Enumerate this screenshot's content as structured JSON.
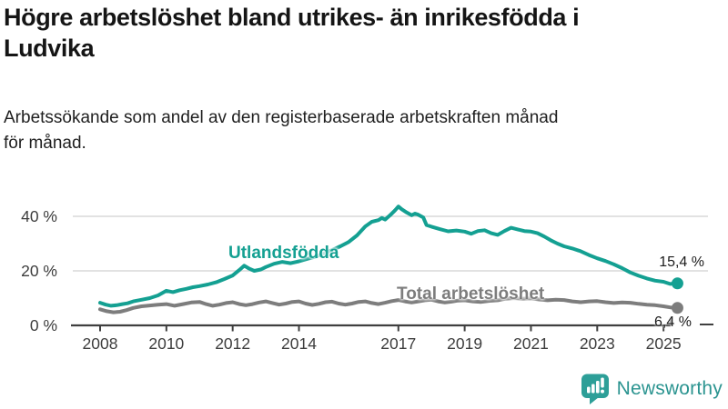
{
  "header": {
    "title": "Högre arbetslöshet bland utrikes- än inrikesfödda i Ludvika",
    "title_lines": [
      "Högre arbetslöshet bland utrikes- än inrikesfödda i",
      "Ludvika"
    ],
    "subtitle": "Arbetssökande som andel av den registerbaserade arbetskraften månad för månad.",
    "subtitle_lines": [
      "Arbetssökande som andel av den registerbaserade arbetskraften månad",
      "för månad."
    ]
  },
  "chart_data": {
    "type": "line",
    "unit": "%",
    "xlabel": "",
    "ylabel": "",
    "x_range": [
      2008,
      2025.5
    ],
    "ylim": [
      0,
      47
    ],
    "grid": "horizontal",
    "x_ticks": [
      2008,
      2010,
      2012,
      2014,
      2017,
      2019,
      2021,
      2023,
      2025
    ],
    "y_ticks": [
      {
        "value": 0,
        "label": "0 %"
      },
      {
        "value": 20,
        "label": "20 %"
      },
      {
        "value": 40,
        "label": "40 %"
      }
    ],
    "series": [
      {
        "name": "Utlandsfödda",
        "color": "#14a092",
        "end_label": "15,4 %",
        "end_value": 15.4,
        "points": [
          [
            2008.0,
            8.3
          ],
          [
            2008.17,
            7.6
          ],
          [
            2008.33,
            7.2
          ],
          [
            2008.5,
            7.4
          ],
          [
            2008.67,
            7.8
          ],
          [
            2008.83,
            8.1
          ],
          [
            2009.0,
            8.8
          ],
          [
            2009.25,
            9.4
          ],
          [
            2009.5,
            10.0
          ],
          [
            2009.75,
            11.0
          ],
          [
            2010.0,
            12.7
          ],
          [
            2010.2,
            12.2
          ],
          [
            2010.4,
            12.9
          ],
          [
            2010.6,
            13.4
          ],
          [
            2010.8,
            14.0
          ],
          [
            2011.0,
            14.4
          ],
          [
            2011.25,
            15.0
          ],
          [
            2011.5,
            15.8
          ],
          [
            2011.75,
            17.0
          ],
          [
            2012.0,
            18.3
          ],
          [
            2012.2,
            20.3
          ],
          [
            2012.35,
            21.9
          ],
          [
            2012.5,
            20.8
          ],
          [
            2012.65,
            20.0
          ],
          [
            2012.85,
            20.5
          ],
          [
            2013.0,
            21.4
          ],
          [
            2013.25,
            22.6
          ],
          [
            2013.5,
            23.3
          ],
          [
            2013.75,
            22.8
          ],
          [
            2014.0,
            23.5
          ],
          [
            2014.25,
            24.4
          ],
          [
            2014.5,
            25.2
          ],
          [
            2014.75,
            26.4
          ],
          [
            2015.0,
            27.6
          ],
          [
            2015.25,
            29.0
          ],
          [
            2015.5,
            30.6
          ],
          [
            2015.75,
            33.0
          ],
          [
            2016.0,
            36.3
          ],
          [
            2016.2,
            38.0
          ],
          [
            2016.4,
            38.6
          ],
          [
            2016.5,
            39.4
          ],
          [
            2016.6,
            38.8
          ],
          [
            2016.75,
            40.4
          ],
          [
            2016.9,
            42.2
          ],
          [
            2017.0,
            43.6
          ],
          [
            2017.1,
            42.6
          ],
          [
            2017.25,
            41.4
          ],
          [
            2017.4,
            40.4
          ],
          [
            2017.5,
            41.0
          ],
          [
            2017.6,
            40.6
          ],
          [
            2017.75,
            39.6
          ],
          [
            2017.85,
            36.8
          ],
          [
            2018.0,
            36.2
          ],
          [
            2018.25,
            35.3
          ],
          [
            2018.5,
            34.5
          ],
          [
            2018.75,
            34.8
          ],
          [
            2019.0,
            34.4
          ],
          [
            2019.2,
            33.6
          ],
          [
            2019.4,
            34.6
          ],
          [
            2019.6,
            34.9
          ],
          [
            2019.8,
            33.8
          ],
          [
            2020.0,
            33.2
          ],
          [
            2020.2,
            34.6
          ],
          [
            2020.4,
            35.8
          ],
          [
            2020.6,
            35.2
          ],
          [
            2020.8,
            34.6
          ],
          [
            2021.0,
            34.4
          ],
          [
            2021.2,
            33.8
          ],
          [
            2021.4,
            32.6
          ],
          [
            2021.6,
            31.2
          ],
          [
            2021.8,
            30.0
          ],
          [
            2022.0,
            29.0
          ],
          [
            2022.25,
            28.2
          ],
          [
            2022.5,
            27.2
          ],
          [
            2022.75,
            25.8
          ],
          [
            2023.0,
            24.6
          ],
          [
            2023.25,
            23.6
          ],
          [
            2023.5,
            22.4
          ],
          [
            2023.75,
            21.0
          ],
          [
            2024.0,
            19.4
          ],
          [
            2024.25,
            18.2
          ],
          [
            2024.5,
            17.2
          ],
          [
            2024.75,
            16.4
          ],
          [
            2025.0,
            16.0
          ],
          [
            2025.2,
            15.2
          ],
          [
            2025.42,
            15.4
          ]
        ]
      },
      {
        "name": "Total arbetslöshet",
        "color": "#7d7d7d",
        "end_label": "6,4 %",
        "end_value": 6.4,
        "points": [
          [
            2008.0,
            5.9
          ],
          [
            2008.2,
            5.2
          ],
          [
            2008.4,
            4.8
          ],
          [
            2008.6,
            5.0
          ],
          [
            2008.8,
            5.6
          ],
          [
            2009.0,
            6.4
          ],
          [
            2009.25,
            7.0
          ],
          [
            2009.5,
            7.3
          ],
          [
            2009.75,
            7.6
          ],
          [
            2010.0,
            7.8
          ],
          [
            2010.25,
            7.2
          ],
          [
            2010.5,
            7.8
          ],
          [
            2010.75,
            8.4
          ],
          [
            2011.0,
            8.6
          ],
          [
            2011.2,
            7.8
          ],
          [
            2011.4,
            7.2
          ],
          [
            2011.6,
            7.6
          ],
          [
            2011.8,
            8.2
          ],
          [
            2012.0,
            8.5
          ],
          [
            2012.2,
            7.8
          ],
          [
            2012.4,
            7.4
          ],
          [
            2012.6,
            7.8
          ],
          [
            2012.8,
            8.4
          ],
          [
            2013.0,
            8.8
          ],
          [
            2013.2,
            8.2
          ],
          [
            2013.4,
            7.6
          ],
          [
            2013.6,
            8.0
          ],
          [
            2013.8,
            8.6
          ],
          [
            2014.0,
            8.8
          ],
          [
            2014.2,
            8.0
          ],
          [
            2014.4,
            7.5
          ],
          [
            2014.6,
            7.9
          ],
          [
            2014.8,
            8.5
          ],
          [
            2015.0,
            8.7
          ],
          [
            2015.2,
            8.0
          ],
          [
            2015.4,
            7.6
          ],
          [
            2015.6,
            8.0
          ],
          [
            2015.8,
            8.6
          ],
          [
            2016.0,
            8.8
          ],
          [
            2016.2,
            8.2
          ],
          [
            2016.4,
            7.8
          ],
          [
            2016.6,
            8.3
          ],
          [
            2016.8,
            8.9
          ],
          [
            2017.0,
            9.3
          ],
          [
            2017.2,
            8.8
          ],
          [
            2017.4,
            8.4
          ],
          [
            2017.6,
            8.8
          ],
          [
            2017.8,
            9.2
          ],
          [
            2018.0,
            9.4
          ],
          [
            2018.2,
            8.8
          ],
          [
            2018.4,
            8.4
          ],
          [
            2018.6,
            8.7
          ],
          [
            2018.8,
            9.1
          ],
          [
            2019.0,
            9.2
          ],
          [
            2019.25,
            8.8
          ],
          [
            2019.5,
            8.6
          ],
          [
            2019.75,
            9.0
          ],
          [
            2020.0,
            9.2
          ],
          [
            2020.25,
            9.8
          ],
          [
            2020.5,
            10.0
          ],
          [
            2020.75,
            9.8
          ],
          [
            2021.0,
            9.9
          ],
          [
            2021.25,
            9.5
          ],
          [
            2021.5,
            9.2
          ],
          [
            2021.75,
            9.4
          ],
          [
            2022.0,
            9.3
          ],
          [
            2022.25,
            8.8
          ],
          [
            2022.5,
            8.5
          ],
          [
            2022.75,
            8.8
          ],
          [
            2023.0,
            8.9
          ],
          [
            2023.25,
            8.5
          ],
          [
            2023.5,
            8.2
          ],
          [
            2023.75,
            8.4
          ],
          [
            2024.0,
            8.3
          ],
          [
            2024.25,
            7.9
          ],
          [
            2024.5,
            7.6
          ],
          [
            2024.75,
            7.4
          ],
          [
            2025.0,
            7.0
          ],
          [
            2025.2,
            6.6
          ],
          [
            2025.42,
            6.4
          ]
        ]
      }
    ],
    "colors": {
      "grid": "#d9d9d9",
      "axis": "#3f3f3f",
      "tick_text": "#3d3d3d"
    }
  },
  "logo": {
    "text": "Newsworthy",
    "icon": "bar-chart-speech-bubble-icon",
    "icon_color": "#2d9f98",
    "text_color": "#2b9490"
  }
}
